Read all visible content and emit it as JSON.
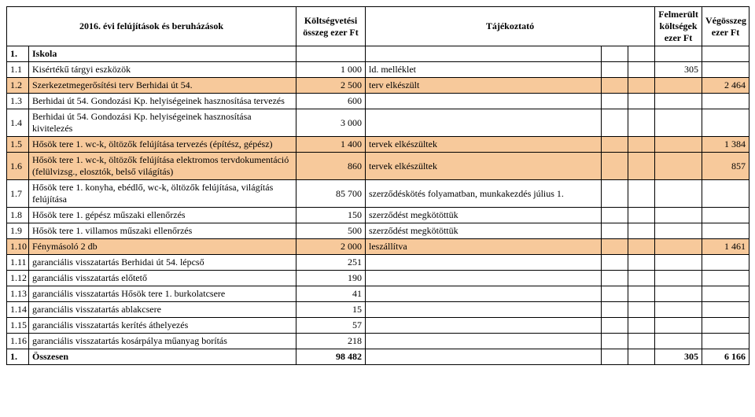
{
  "colors": {
    "highlight": "#f7c99b",
    "border": "#000000",
    "background": "#ffffff",
    "text": "#000000"
  },
  "typography": {
    "font_family": "Times New Roman",
    "font_size_pt": 12
  },
  "header": {
    "title": "2016. évi felújítások és beruházások",
    "budget": "Költségvetési összeg ezer Ft",
    "info": "Tájékoztató",
    "costs": "Felmerült költségek ezer Ft",
    "final": "Végösszeg ezer Ft"
  },
  "section": {
    "num": "1.",
    "label": "Iskola"
  },
  "rows": [
    {
      "hl": false,
      "num": "1.1",
      "desc": "Kisértékű tárgyi eszközök",
      "budget": "1 000",
      "info": "ld. melléklet",
      "cost": "305",
      "final": ""
    },
    {
      "hl": true,
      "num": "1.2",
      "desc": "Szerkezetmegerősítési terv Berhidai út 54.",
      "budget": "2 500",
      "info": "terv elkészült",
      "cost": "",
      "final": "2 464"
    },
    {
      "hl": false,
      "num": "1.3",
      "desc": "Berhidai út 54. Gondozási Kp. helyiségeinek hasznosítása tervezés",
      "budget": "600",
      "info": "",
      "cost": "",
      "final": ""
    },
    {
      "hl": false,
      "num": "1.4",
      "desc": "Berhidai út 54. Gondozási Kp. helyiségeinek hasznosítása kivitelezés",
      "budget": "3 000",
      "info": "",
      "cost": "",
      "final": ""
    },
    {
      "hl": true,
      "num": "1.5",
      "desc": "Hősök tere 1. wc-k, öltözők felújítása tervezés (építész, gépész)",
      "budget": "1 400",
      "info": "tervek elkészültek",
      "cost": "",
      "final": "1 384"
    },
    {
      "hl": true,
      "num": "1.6",
      "desc": "Hősök tere 1. wc-k, öltözők felújítása elektromos tervdokumentáció (felülvizsg., elosztók, belső világítás)",
      "budget": "860",
      "info": "tervek elkészültek",
      "cost": "",
      "final": "857"
    },
    {
      "hl": false,
      "num": "1.7",
      "desc": "Hősök tere 1. konyha, ebédlő, wc-k, öltözők felújítása, világítás felújítása",
      "budget": "85 700",
      "info": "szerződéskötés folyamatban, munkakezdés július 1.",
      "cost": "",
      "final": ""
    },
    {
      "hl": false,
      "num": "1.8",
      "desc": "Hősök tere 1. gépész műszaki ellenőrzés",
      "budget": "150",
      "info": "szerződést megkötöttük",
      "cost": "",
      "final": ""
    },
    {
      "hl": false,
      "num": "1.9",
      "desc": "Hősök tere 1. villamos műszaki ellenőrzés",
      "budget": "500",
      "info": "szerződést megkötöttük",
      "cost": "",
      "final": ""
    },
    {
      "hl": true,
      "num": "1.10",
      "desc": "Fénymásoló 2 db",
      "budget": "2 000",
      "info": "leszállítva",
      "cost": "",
      "final": "1 461"
    },
    {
      "hl": false,
      "num": "1.11",
      "desc": "garanciális visszatartás Berhidai út 54. lépcső",
      "budget": "251",
      "info": "",
      "cost": "",
      "final": ""
    },
    {
      "hl": false,
      "num": "1.12",
      "desc": "garanciális visszatartás előtető",
      "budget": "190",
      "info": "",
      "cost": "",
      "final": ""
    },
    {
      "hl": false,
      "num": "1.13",
      "desc": "garanciális visszatartás Hősök tere 1. burkolatcsere",
      "budget": "41",
      "info": "",
      "cost": "",
      "final": ""
    },
    {
      "hl": false,
      "num": "1.14",
      "desc": "garanciális visszatartás ablakcsere",
      "budget": "15",
      "info": "",
      "cost": "",
      "final": ""
    },
    {
      "hl": false,
      "num": "1.15",
      "desc": "garanciális visszatartás kerítés áthelyezés",
      "budget": "57",
      "info": "",
      "cost": "",
      "final": ""
    },
    {
      "hl": false,
      "num": "1.16",
      "desc": "garanciális visszatartás kosárpálya műanyag borítás",
      "budget": "218",
      "info": "",
      "cost": "",
      "final": ""
    }
  ],
  "total": {
    "num": "1.",
    "label": "Összesen",
    "budget": "98 482",
    "info": "",
    "cost": "305",
    "final": "6 166"
  }
}
